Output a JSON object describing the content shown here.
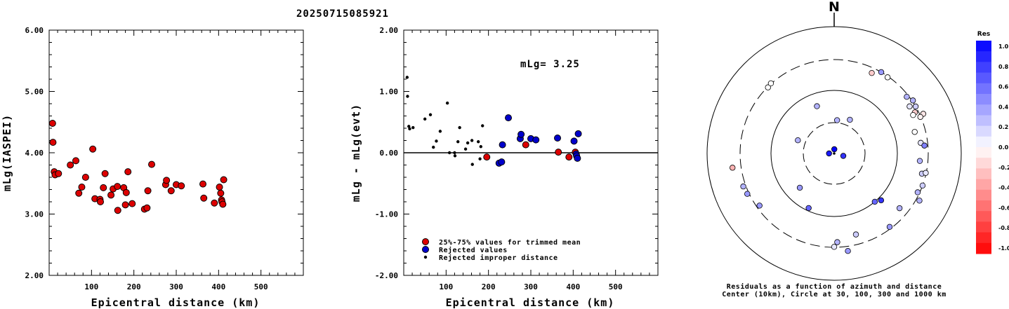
{
  "title": "20250715085921",
  "left_panel": {
    "xlabel": "Epicentral distance (km)",
    "ylabel": "mLg(IASPEI)"
  },
  "mid_panel": {
    "xlabel": "Epicentral distance (km)",
    "ylabel": "mLg - mLg(evt)",
    "annotation": "mLg= 3.25",
    "legend": [
      "25%-75% values for trimmed mean",
      "Rejected values",
      "Rejected improper distance"
    ]
  },
  "right_panel": {
    "north": "N",
    "caption1": "Residuals as a function of azimuth and distance",
    "caption2": "Center (10km), Circle at 30, 100, 300 and 1000 km",
    "colorbar_title": "Res",
    "colorbar_labels": [
      "1.0",
      "0.8",
      "0.6",
      "0.4",
      "0.2",
      "0.0",
      "-0.2",
      "-0.4",
      "-0.6",
      "-0.8",
      "-1.0"
    ]
  },
  "colors": {
    "used": "#dd0000",
    "rejected": "#0000cc",
    "improper": "#000000"
  },
  "chart_data": [
    {
      "type": "scatter",
      "title": "20250715085921",
      "xlabel": "Epicentral distance (km)",
      "ylabel": "mLg(IASPEI)",
      "xlim": [
        0,
        600
      ],
      "ylim": [
        2.0,
        6.0
      ],
      "xticks": [
        100,
        200,
        300,
        400,
        500
      ],
      "yticks": [
        2.0,
        3.0,
        4.0,
        5.0,
        6.0
      ],
      "series": [
        {
          "points": [
            [
              8,
              4.48
            ],
            [
              9,
              4.17
            ],
            [
              12,
              3.69
            ],
            [
              14,
              3.64
            ],
            [
              22,
              3.66
            ],
            [
              50,
              3.8
            ],
            [
              63,
              3.87
            ],
            [
              70,
              3.34
            ],
            [
              77,
              3.44
            ],
            [
              86,
              3.6
            ],
            [
              103,
              4.06
            ],
            [
              108,
              3.25
            ],
            [
              120,
              3.24
            ],
            [
              121,
              3.2
            ],
            [
              128,
              3.43
            ],
            [
              132,
              3.66
            ],
            [
              146,
              3.31
            ],
            [
              151,
              3.41
            ],
            [
              161,
              3.45
            ],
            [
              162,
              3.06
            ],
            [
              176,
              3.43
            ],
            [
              180,
              3.15
            ],
            [
              182,
              3.35
            ],
            [
              186,
              3.69
            ],
            [
              196,
              3.17
            ],
            [
              225,
              3.08
            ],
            [
              231,
              3.1
            ],
            [
              233,
              3.38
            ],
            [
              242,
              3.81
            ],
            [
              275,
              3.48
            ],
            [
              277,
              3.55
            ],
            [
              288,
              3.38
            ],
            [
              300,
              3.48
            ],
            [
              312,
              3.46
            ],
            [
              363,
              3.49
            ],
            [
              365,
              3.26
            ],
            [
              390,
              3.18
            ],
            [
              402,
              3.44
            ],
            [
              405,
              3.34
            ],
            [
              407,
              3.23
            ],
            [
              408,
              3.2
            ],
            [
              410,
              3.16
            ],
            [
              412,
              3.56
            ]
          ]
        }
      ]
    },
    {
      "type": "scatter",
      "xlabel": "Epicentral distance (km)",
      "ylabel": "mLg - mLg(evt)",
      "xlim": [
        0,
        600
      ],
      "ylim": [
        -2.0,
        2.0
      ],
      "xticks": [
        100,
        200,
        300,
        400,
        500
      ],
      "yticks": [
        -2.0,
        -1.0,
        0.0,
        1.0,
        2.0
      ],
      "annotation": "mLg= 3.25",
      "series": [
        {
          "name": "25%-75% values for trimmed mean",
          "color": "#dd0000",
          "points": [
            [
              196,
              -0.07
            ],
            [
              288,
              0.13
            ],
            [
              365,
              0.01
            ],
            [
              390,
              -0.07
            ],
            [
              405,
              0.01
            ]
          ]
        },
        {
          "name": "Rejected values",
          "color": "#0000cc",
          "points": [
            [
              225,
              -0.17
            ],
            [
              231,
              -0.15
            ],
            [
              233,
              0.13
            ],
            [
              247,
              0.57
            ],
            [
              275,
              0.23
            ],
            [
              277,
              0.3
            ],
            [
              300,
              0.23
            ],
            [
              312,
              0.21
            ],
            [
              363,
              0.24
            ],
            [
              402,
              0.19
            ],
            [
              407,
              -0.02
            ],
            [
              408,
              -0.05
            ],
            [
              410,
              -0.09
            ],
            [
              412,
              0.31
            ]
          ]
        },
        {
          "name": "Rejected improper distance",
          "color": "#000000",
          "points": [
            [
              8,
              1.23
            ],
            [
              9,
              0.92
            ],
            [
              12,
              0.43
            ],
            [
              14,
              0.39
            ],
            [
              22,
              0.41
            ],
            [
              50,
              0.55
            ],
            [
              63,
              0.62
            ],
            [
              70,
              0.09
            ],
            [
              77,
              0.19
            ],
            [
              86,
              0.35
            ],
            [
              103,
              0.81
            ],
            [
              108,
              0.0
            ],
            [
              120,
              0.0
            ],
            [
              121,
              -0.05
            ],
            [
              128,
              0.18
            ],
            [
              132,
              0.41
            ],
            [
              146,
              0.06
            ],
            [
              151,
              0.16
            ],
            [
              161,
              0.2
            ],
            [
              162,
              -0.19
            ],
            [
              176,
              0.18
            ],
            [
              180,
              -0.1
            ],
            [
              182,
              0.1
            ],
            [
              186,
              0.44
            ]
          ]
        }
      ]
    },
    {
      "type": "scatter",
      "subtype": "polar",
      "title": "Residuals as a function of azimuth and distance",
      "rings_km": [
        30,
        100,
        300,
        1000
      ],
      "center_km": 10,
      "colorbar": {
        "title": "Res",
        "range": [
          -1.0,
          1.0
        ]
      },
      "points": [
        {
          "az": 5,
          "dist_km": 33,
          "res": 0.3
        },
        {
          "az": 25,
          "dist_km": 38,
          "res": 0.3
        },
        {
          "az": 105,
          "dist_km": 14,
          "res": 0.8
        },
        {
          "az": 270,
          "dist_km": 12,
          "res": 0.9
        },
        {
          "az": 2,
          "dist_km": 10,
          "res": 1.0
        },
        {
          "az": 290,
          "dist_km": 40,
          "res": 0.3
        },
        {
          "az": 340,
          "dist_km": 62,
          "res": 0.3
        },
        {
          "az": 225,
          "dist_km": 58,
          "res": 0.4
        },
        {
          "az": 315,
          "dist_km": 295,
          "res": 0.0
        },
        {
          "az": 318,
          "dist_km": 305,
          "res": 0.0
        },
        {
          "az": 30,
          "dist_km": 300,
          "res": 0.4
        },
        {
          "az": 25,
          "dist_km": 250,
          "res": -0.2
        },
        {
          "az": 35,
          "dist_km": 290,
          "res": 0.0
        },
        {
          "az": 52,
          "dist_km": 280,
          "res": 0.3
        },
        {
          "az": 56,
          "dist_km": 310,
          "res": 0.3
        },
        {
          "az": 58,
          "dist_km": 250,
          "res": 0.1
        },
        {
          "az": 63,
          "dist_km": 265,
          "res": -0.2
        },
        {
          "az": 66,
          "dist_km": 340,
          "res": -0.1
        },
        {
          "az": 64,
          "dist_km": 240,
          "res": 0.0
        },
        {
          "az": 67,
          "dist_km": 295,
          "res": -0.05
        },
        {
          "az": 60,
          "dist_km": 300,
          "res": 0.2
        },
        {
          "az": 75,
          "dist_km": 205,
          "res": 0.0
        },
        {
          "az": 83,
          "dist_km": 235,
          "res": 0.1
        },
        {
          "az": 85,
          "dist_km": 265,
          "res": 0.5
        },
        {
          "az": 95,
          "dist_km": 225,
          "res": 0.3
        },
        {
          "az": 103,
          "dist_km": 260,
          "res": 0.2
        },
        {
          "az": 115,
          "dist_km": 280,
          "res": 0.3
        },
        {
          "az": 110,
          "dist_km": 300,
          "res": 0.2
        },
        {
          "az": 102,
          "dist_km": 295,
          "res": 0.1
        },
        {
          "az": 119,
          "dist_km": 340,
          "res": 0.3
        },
        {
          "az": 135,
          "dist_km": 112,
          "res": 0.8
        },
        {
          "az": 140,
          "dist_km": 100,
          "res": 0.6
        },
        {
          "az": 130,
          "dist_km": 220,
          "res": 0.3
        },
        {
          "az": 143,
          "dist_km": 280,
          "res": 0.4
        },
        {
          "az": 165,
          "dist_km": 210,
          "res": 0.2
        },
        {
          "az": 178,
          "dist_km": 250,
          "res": 0.3
        },
        {
          "az": 172,
          "dist_km": 355,
          "res": 0.4
        },
        {
          "az": 180,
          "dist_km": 295,
          "res": 0.1
        },
        {
          "az": 205,
          "dist_km": 90,
          "res": 0.6
        },
        {
          "az": 235,
          "dist_km": 270,
          "res": 0.4
        },
        {
          "az": 245,
          "dist_km": 320,
          "res": 0.4
        },
        {
          "az": 262,
          "dist_km": 410,
          "res": -0.3
        },
        {
          "az": 250,
          "dist_km": 330,
          "res": 0.3
        }
      ]
    }
  ]
}
